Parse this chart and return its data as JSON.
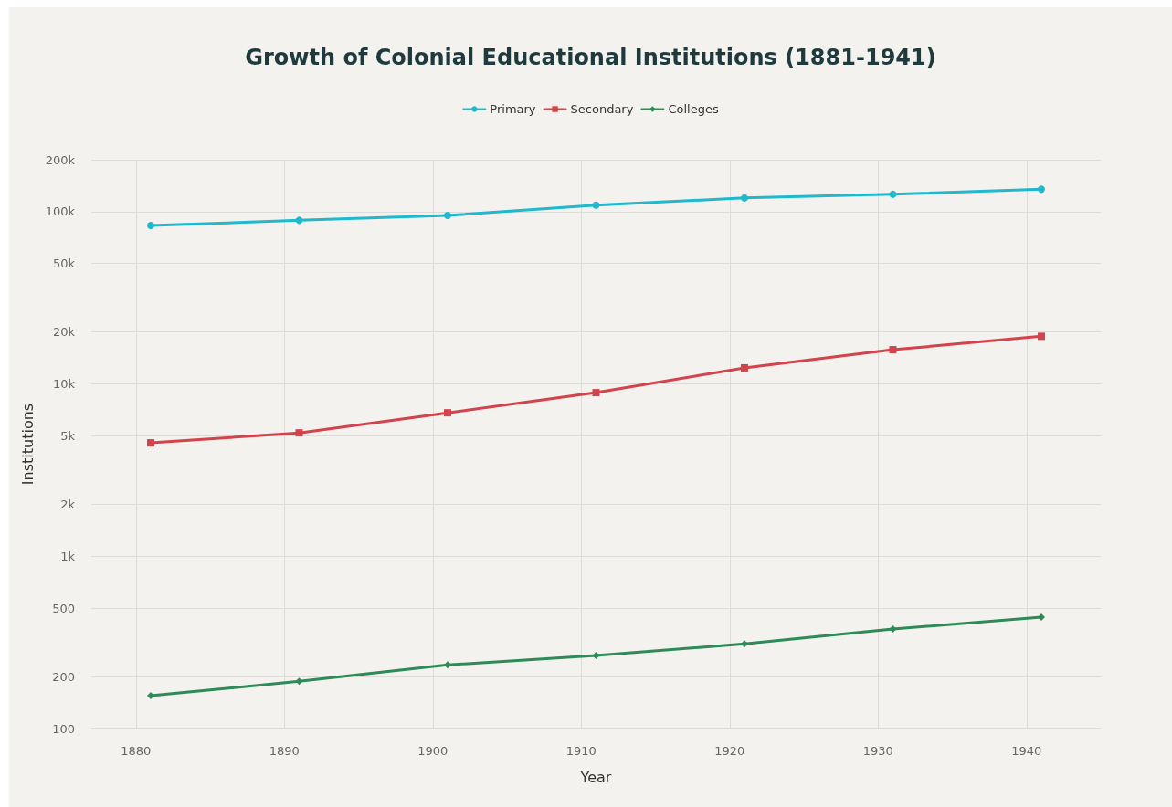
{
  "chart_data": {
    "type": "line",
    "title": "Growth of Colonial Educational Institutions (1881-1941)",
    "xlabel": "Year",
    "ylabel": "Institutions",
    "x": [
      1881,
      1891,
      1901,
      1911,
      1921,
      1931,
      1941
    ],
    "series": [
      {
        "name": "Primary",
        "color": "#1fb8cd",
        "marker": "circle",
        "values": [
          83000,
          89000,
          95000,
          109000,
          120000,
          126000,
          135000
        ]
      },
      {
        "name": "Secondary",
        "color": "#d2434b",
        "marker": "square",
        "values": [
          4550,
          5200,
          6800,
          8900,
          12400,
          15800,
          18900
        ]
      },
      {
        "name": "Colleges",
        "color": "#2e8b57",
        "marker": "diamond",
        "values": [
          155,
          188,
          234,
          265,
          310,
          378,
          443
        ]
      }
    ],
    "xlim": [
      1877,
      1945
    ],
    "xticks": [
      1880,
      1890,
      1900,
      1910,
      1920,
      1930,
      1940
    ],
    "ylim": [
      100,
      200000
    ],
    "yticks": [
      100,
      200,
      500,
      {
        "value": 1000,
        "label": "1k"
      },
      {
        "value": 2000,
        "label": "2k"
      },
      {
        "value": 5000,
        "label": "5k"
      },
      {
        "value": 10000,
        "label": "10k"
      },
      {
        "value": 20000,
        "label": "20k"
      },
      {
        "value": 50000,
        "label": "50k"
      },
      {
        "value": 100000,
        "label": "100k"
      },
      {
        "value": 200000,
        "label": "200k"
      }
    ],
    "log": "y",
    "grid": true,
    "legend": "top",
    "line_style": "solid"
  }
}
